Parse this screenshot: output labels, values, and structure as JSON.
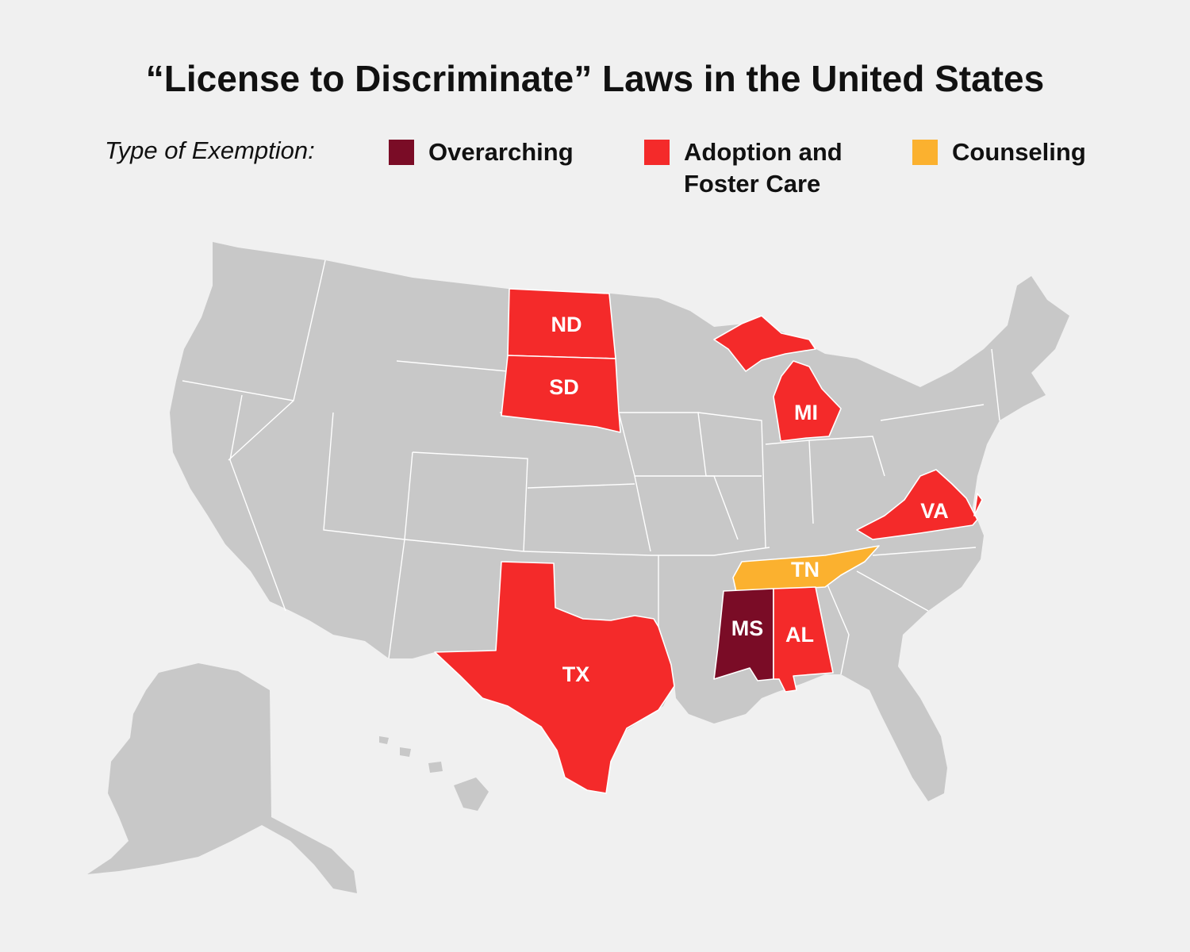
{
  "title": "“License to Discriminate” Laws in the United States",
  "legend": {
    "label": "Type of Exemption:",
    "items": [
      {
        "key": "overarching",
        "lines": [
          "Overarching"
        ],
        "color": "#7a0c26"
      },
      {
        "key": "adoption",
        "lines": [
          "Adoption and",
          "Foster Care"
        ],
        "color": "#f42a2a"
      },
      {
        "key": "counseling",
        "lines": [
          "Counseling"
        ],
        "color": "#fbb12f"
      }
    ]
  },
  "colors": {
    "default": "#c8c8c8",
    "border": "#ffffff",
    "background": "#f0f0f0"
  },
  "states": {
    "ND": {
      "label": "ND",
      "category": "adoption"
    },
    "SD": {
      "label": "SD",
      "category": "adoption"
    },
    "MI": {
      "label": "MI",
      "category": "adoption"
    },
    "VA": {
      "label": "VA",
      "category": "adoption"
    },
    "TN": {
      "label": "TN",
      "category": "counseling"
    },
    "MS": {
      "label": "MS",
      "category": "overarching"
    },
    "AL": {
      "label": "AL",
      "category": "adoption"
    },
    "TX": {
      "label": "TX",
      "category": "adoption"
    }
  }
}
